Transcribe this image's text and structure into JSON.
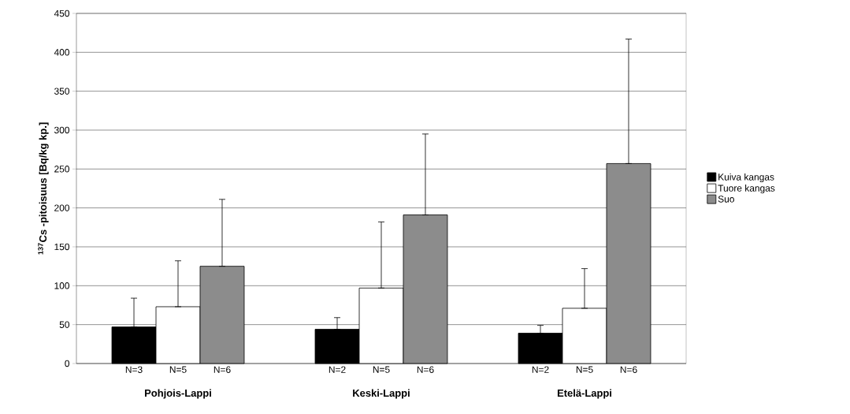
{
  "chart_data": {
    "type": "bar",
    "ylabel": "$^{137}$Cs -pitoisuus [Bq/kg kp.]",
    "categories": [
      "Pohjois-Lappi",
      "Keski-Lappi",
      "Etelä-Lappi"
    ],
    "series": [
      {
        "name": "Kuiva kangas",
        "color": "#000000",
        "values": [
          47,
          44,
          39
        ],
        "errors": [
          [
            47,
            84
          ],
          [
            44,
            59
          ],
          [
            39,
            49
          ]
        ]
      },
      {
        "name": "Tuore kangas",
        "color": "#ffffff",
        "values": [
          73,
          97,
          71
        ],
        "errors": [
          [
            73,
            132
          ],
          [
            97,
            182
          ],
          [
            71,
            122
          ]
        ]
      },
      {
        "name": "Suo",
        "color": "#8c8c8c",
        "values": [
          125,
          191,
          257
        ],
        "errors": [
          [
            125,
            211
          ],
          [
            191,
            295
          ],
          [
            257,
            417
          ]
        ]
      }
    ],
    "annotations": [
      "N=3",
      "N=5",
      "N=6",
      "N=2",
      "N=5",
      "N=6",
      "N=2",
      "N=5",
      "N=6"
    ],
    "ylim": [
      0,
      450
    ],
    "yticks": [
      0,
      50,
      100,
      150,
      200,
      250,
      300,
      350,
      400,
      450
    ],
    "grid": "y",
    "legend": "right"
  }
}
